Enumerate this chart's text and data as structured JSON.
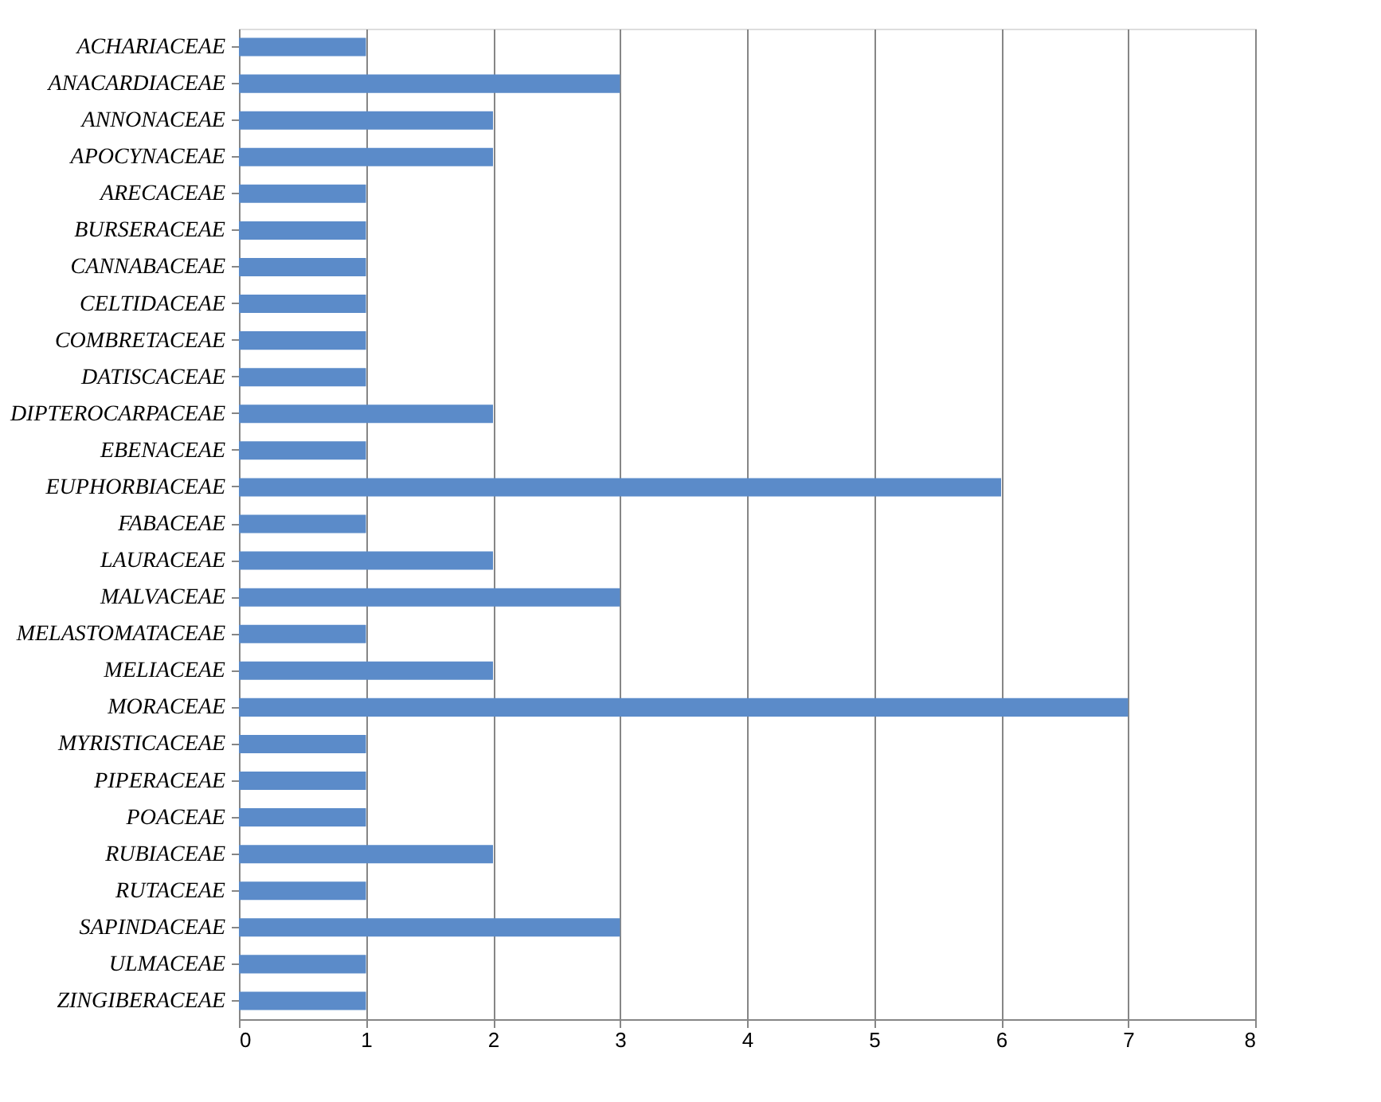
{
  "chart_data": {
    "type": "bar",
    "orientation": "horizontal",
    "categories": [
      "ACHARIACEAE",
      "ANACARDIACEAE",
      "ANNONACEAE",
      "APOCYNACEAE",
      "ARECACEAE",
      "BURSERACEAE",
      "CANNABACEAE",
      "CELTIDACEAE",
      "COMBRETACEAE",
      "DATISCACEAE",
      "DIPTEROCARPACEAE",
      "EBENACEAE",
      "EUPHORBIACEAE",
      "FABACEAE",
      "LAURACEAE",
      "MALVACEAE",
      "MELASTOMATACEAE",
      "MELIACEAE",
      "MORACEAE",
      "MYRISTICACEAE",
      "PIPERACEAE",
      "POACEAE",
      "RUBIACEAE",
      "RUTACEAE",
      "SAPINDACEAE",
      "ULMACEAE",
      "ZINGIBERACEAE"
    ],
    "values": [
      1,
      3,
      2,
      2,
      1,
      1,
      1,
      1,
      1,
      1,
      2,
      1,
      6,
      1,
      2,
      3,
      1,
      2,
      7,
      1,
      1,
      1,
      2,
      1,
      3,
      1,
      1
    ],
    "color": "#5b8bc9",
    "xlim": [
      0,
      8
    ],
    "xticks": [
      0,
      1,
      2,
      3,
      4,
      5,
      6,
      7,
      8
    ],
    "grid": "x"
  }
}
